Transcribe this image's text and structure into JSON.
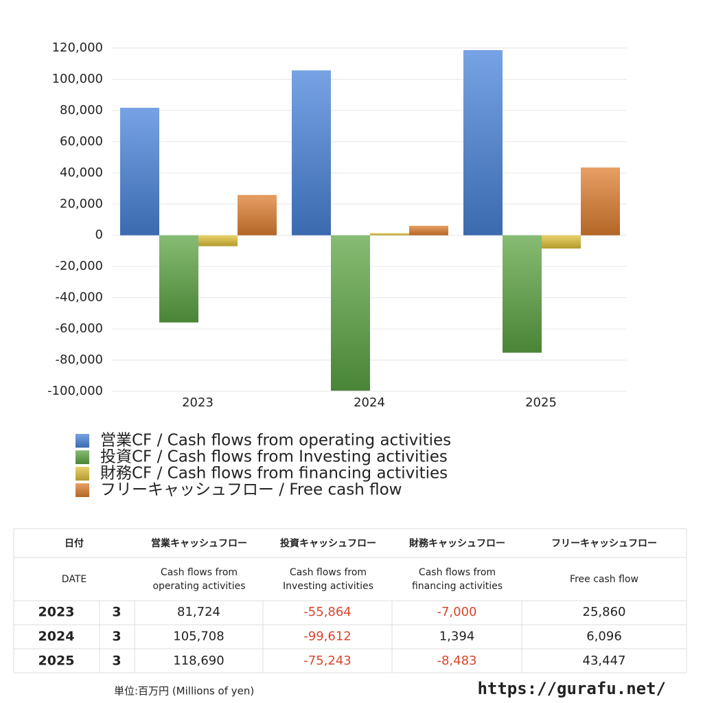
{
  "chart_data": {
    "type": "bar",
    "categories": [
      "2023",
      "2024",
      "2025"
    ],
    "series": [
      {
        "name": "営業CF / Cash flows from operating activities",
        "color": "#4a84db",
        "values": [
          81724,
          105708,
          118690
        ]
      },
      {
        "name": "投資CF / Cash flows from Investing activities",
        "color": "#5da544",
        "values": [
          -55864,
          -99612,
          -75243
        ]
      },
      {
        "name": "財務CF / Cash flows from financing activities",
        "color": "#e0c23a",
        "values": [
          -7000,
          1394,
          -8483
        ]
      },
      {
        "name": "フリーキャッシュフロー / Free cash flow",
        "color": "#e07f30",
        "values": [
          25860,
          6096,
          43447
        ]
      }
    ],
    "ylim": [
      -100000,
      120000
    ],
    "yticks": [
      {
        "value": -100000,
        "label": "-100,000"
      },
      {
        "value": -80000,
        "label": "-80,000"
      },
      {
        "value": -60000,
        "label": "-60,000"
      },
      {
        "value": -40000,
        "label": "-40,000"
      },
      {
        "value": -20000,
        "label": "-20,000"
      },
      0,
      {
        "value": 20000,
        "label": "20,000"
      },
      {
        "value": 40000,
        "label": "40,000"
      },
      {
        "value": 60000,
        "label": "60,000"
      },
      {
        "value": 80000,
        "label": "80,000"
      },
      {
        "value": 100000,
        "label": "100,000"
      },
      {
        "value": 120000,
        "label": "120,000"
      }
    ],
    "grid": true
  },
  "table": {
    "header_ja": [
      "日付",
      "営業キャッシュフロー",
      "投資キャッシュフロー",
      "財務キャッシュフロー",
      "フリーキャッシュフロー"
    ],
    "header_en": [
      "DATE",
      "Cash flows from operating activities",
      "Cash flows from Investing activities",
      "Cash flows from financing activities",
      "Free cash flow"
    ],
    "rows": [
      [
        "2023",
        "3",
        "81,724",
        "-55,864",
        "-7,000",
        "25,860"
      ],
      [
        "2024",
        "3",
        "105,708",
        "-99,612",
        "1,394",
        "6,096"
      ],
      [
        "2025",
        "3",
        "118,690",
        "-75,243",
        "-8,483",
        "43,447"
      ]
    ],
    "negative_color": "#d9452b"
  },
  "unit_note": "単位:百万円 (Millions of yen)",
  "site": "https://gurafu.net/"
}
